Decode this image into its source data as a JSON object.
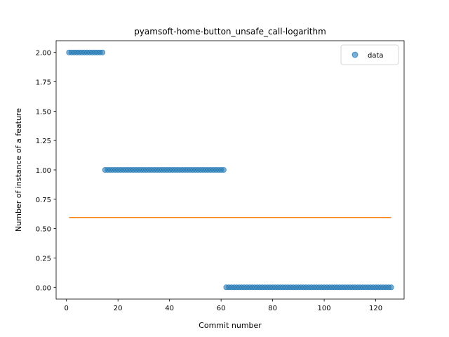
{
  "chart_data": {
    "type": "scatter",
    "title": "pyamsoft-home-button_unsafe_call-logarithm",
    "xlabel": "Commit number",
    "ylabel": "Number of instance of a feature",
    "xlim": [
      -4,
      131
    ],
    "ylim": [
      -0.1,
      2.1
    ],
    "xticks": [
      0,
      20,
      40,
      60,
      80,
      100,
      120
    ],
    "yticks": [
      0.0,
      0.25,
      0.5,
      0.75,
      1.0,
      1.25,
      1.5,
      1.75,
      2.0
    ],
    "legend": {
      "placement": "top-right",
      "entries": [
        "data"
      ]
    },
    "grid": false,
    "series": [
      {
        "name": "data",
        "kind": "scatter",
        "color": "#1f77b4",
        "segments": [
          {
            "x_start": 1,
            "x_end": 14,
            "y": 2
          },
          {
            "x_start": 15,
            "x_end": 61,
            "y": 1
          },
          {
            "x_start": 62,
            "x_end": 126,
            "y": 0
          }
        ]
      },
      {
        "kind": "line",
        "color": "#ff7f0e",
        "x": [
          1,
          126
        ],
        "y": [
          0.595,
          0.595
        ]
      }
    ]
  }
}
